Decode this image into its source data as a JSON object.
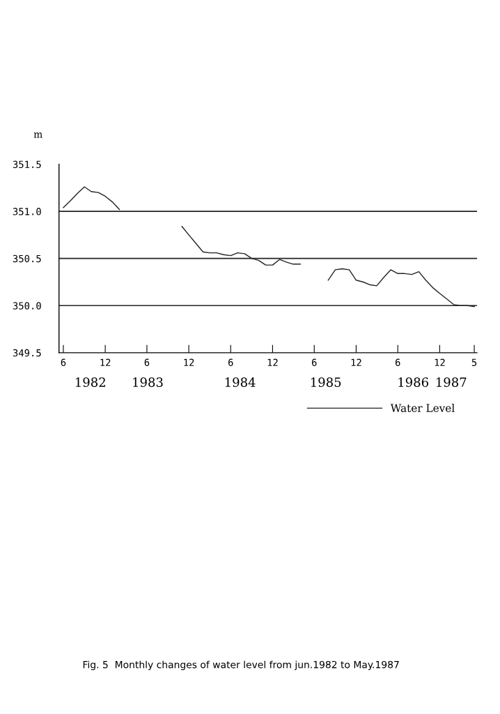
{
  "chart_data": {
    "type": "line",
    "ylabel": "m",
    "x": [
      "1982-06",
      "1982-07",
      "1982-08",
      "1982-09",
      "1982-10",
      "1982-11",
      "1982-12",
      "1983-01",
      "1983-02",
      "1983-03",
      "1983-04",
      "1983-05",
      "1983-06",
      "1983-07",
      "1983-08",
      "1983-09",
      "1983-10",
      "1983-11",
      "1983-12",
      "1984-01",
      "1984-02",
      "1984-03",
      "1984-04",
      "1984-05",
      "1984-06",
      "1984-07",
      "1984-08",
      "1984-09",
      "1984-10",
      "1984-11",
      "1984-12",
      "1985-01",
      "1985-02",
      "1985-03",
      "1985-04",
      "1985-05",
      "1985-06",
      "1985-07",
      "1985-08",
      "1985-09",
      "1985-10",
      "1985-11",
      "1985-12",
      "1986-01",
      "1986-02",
      "1986-03",
      "1986-04",
      "1986-05",
      "1986-06",
      "1986-07",
      "1986-08",
      "1986-09",
      "1986-10",
      "1986-11",
      "1986-12",
      "1987-01",
      "1987-02",
      "1987-03",
      "1987-04",
      "1987-05"
    ],
    "series": [
      {
        "name": "Water Level",
        "color": "#222222",
        "values": [
          351.04,
          351.11,
          351.19,
          351.26,
          351.21,
          351.2,
          351.16,
          351.1,
          351.02,
          null,
          null,
          null,
          null,
          null,
          null,
          null,
          null,
          350.84,
          350.75,
          350.66,
          350.57,
          350.56,
          350.56,
          350.54,
          350.53,
          350.56,
          350.55,
          350.5,
          350.48,
          350.43,
          350.43,
          350.49,
          350.46,
          350.44,
          350.44,
          null,
          null,
          null,
          350.27,
          350.38,
          350.39,
          350.38,
          350.27,
          350.25,
          350.22,
          350.21,
          350.3,
          350.38,
          350.34,
          350.34,
          350.33,
          350.36,
          350.27,
          350.19,
          350.13,
          350.07,
          350.01,
          350.0,
          350.0,
          349.99
        ]
      }
    ],
    "xlim": [
      "1982-05-13",
      "1987-05-13"
    ],
    "xticks": [
      {
        "value": "1982-06",
        "label": "6"
      },
      {
        "value": "1982-12",
        "label": "12"
      },
      {
        "value": "1983-06",
        "label": "6"
      },
      {
        "value": "1983-12",
        "label": "12"
      },
      {
        "value": "1984-06",
        "label": "6"
      },
      {
        "value": "1984-12",
        "label": "12"
      },
      {
        "value": "1985-06",
        "label": "6"
      },
      {
        "value": "1985-12",
        "label": "12"
      },
      {
        "value": "1986-06",
        "label": "6"
      },
      {
        "value": "1986-12",
        "label": "12"
      },
      {
        "value": "1987-05",
        "label": "5"
      }
    ],
    "ylim": [
      349.5,
      351.5
    ],
    "yticks": [
      {
        "value": 349.5,
        "label": "349.5"
      },
      {
        "value": 350.0,
        "label": "350.0"
      },
      {
        "value": 350.5,
        "label": "350.5"
      },
      {
        "value": 351.0,
        "label": "351.0"
      },
      {
        "value": 351.5,
        "label": "351.5"
      }
    ],
    "ref_lines": [
      {
        "axis": "y",
        "value": 351.0,
        "color": "#222222"
      },
      {
        "axis": "y",
        "value": 350.5,
        "color": "#222222"
      },
      {
        "axis": "y",
        "value": 350.0,
        "color": "#222222"
      }
    ],
    "legend": "bottom right",
    "marker": "none",
    "line_style": "solid",
    "annotations": [
      "1982",
      "1983",
      "1984",
      "1985",
      "1986",
      "1987",
      "Fig. 5  Monthly changes of water level from jun.1982 to May.1987"
    ]
  }
}
